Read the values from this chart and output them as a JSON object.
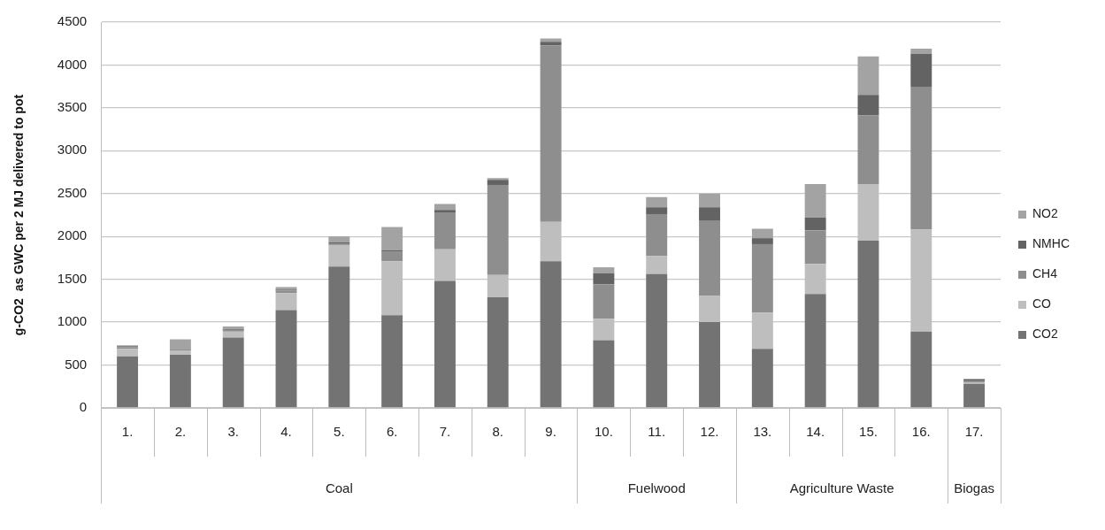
{
  "chart_data": {
    "type": "bar",
    "stacked": true,
    "ylabel": "g-CO2  as GWC per 2 MJ delivered to pot",
    "categories": [
      "1.",
      "2.",
      "3.",
      "4.",
      "5.",
      "6.",
      "7.",
      "8.",
      "9.",
      "10.",
      "11.",
      "12.",
      "13.",
      "14.",
      "15.",
      "16.",
      "17."
    ],
    "series": [
      {
        "name": "CO2",
        "color": "#737373",
        "values": [
          600,
          620,
          820,
          1140,
          1650,
          1080,
          1480,
          1290,
          1710,
          790,
          1560,
          1000,
          690,
          1330,
          1950,
          890,
          280
        ]
      },
      {
        "name": "CO",
        "color": "#bebebe",
        "values": [
          90,
          50,
          70,
          200,
          250,
          630,
          370,
          260,
          460,
          250,
          210,
          310,
          420,
          350,
          660,
          1190,
          20
        ]
      },
      {
        "name": "CH4",
        "color": "#8e8e8e",
        "values": [
          20,
          20,
          20,
          30,
          20,
          110,
          430,
          1050,
          2060,
          400,
          490,
          870,
          800,
          390,
          800,
          1660,
          20
        ]
      },
      {
        "name": "NMHC",
        "color": "#636363",
        "values": [
          10,
          0,
          10,
          10,
          10,
          20,
          30,
          60,
          40,
          130,
          80,
          160,
          70,
          150,
          240,
          390,
          10
        ]
      },
      {
        "name": "NO2",
        "color": "#a3a3a3",
        "values": [
          10,
          110,
          30,
          30,
          70,
          270,
          70,
          20,
          40,
          70,
          120,
          160,
          110,
          390,
          450,
          60,
          10
        ]
      }
    ],
    "annotations": [
      "Coal",
      "Fuelwood",
      "Agriculture Waste",
      "Biogas"
    ],
    "ylim": [
      0,
      4500
    ],
    "yticks": [
      0,
      500,
      1000,
      1500,
      2000,
      2500,
      3000,
      3500,
      4000,
      4500
    ],
    "grid": "y",
    "legend": "right"
  }
}
